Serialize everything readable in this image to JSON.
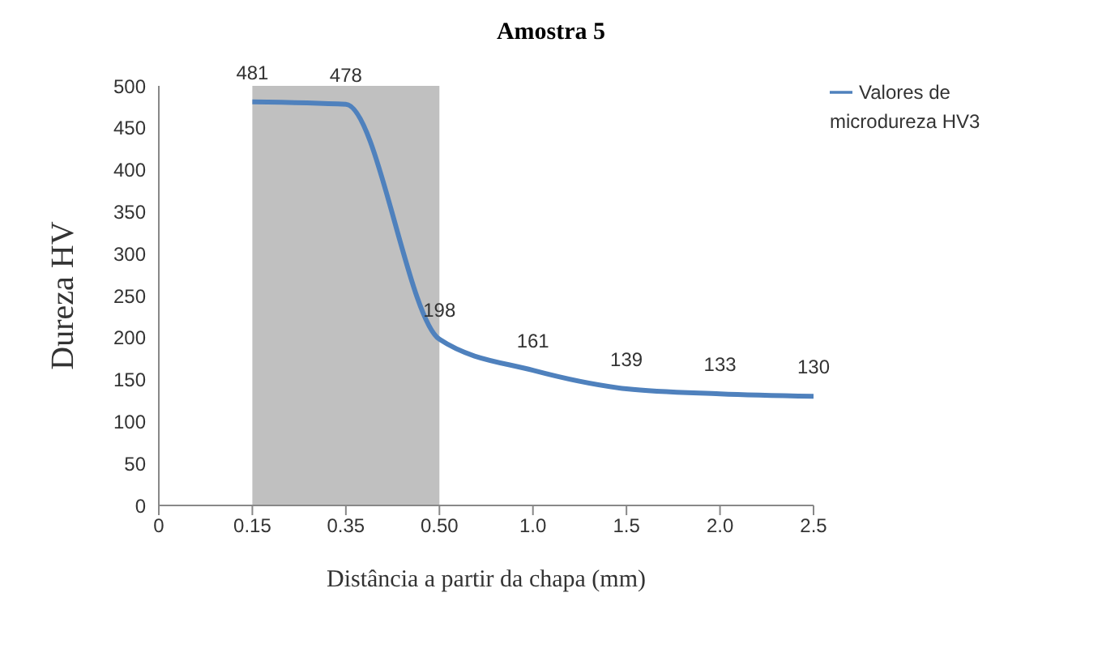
{
  "chart_data": {
    "type": "line",
    "title": "Amostra 5",
    "xlabel": "Distância a partir da chapa (mm)",
    "ylabel": "Dureza HV",
    "categories": [
      "0",
      "0.15",
      "0.35",
      "0.50",
      "1.0",
      "1.5",
      "2.0",
      "2.5"
    ],
    "series": [
      {
        "name": "Valores de microdureza HV3",
        "color": "#4f81bd",
        "values": [
          null,
          481,
          478,
          198,
          161,
          139,
          133,
          130
        ]
      }
    ],
    "ylim": [
      0,
      500
    ],
    "yticks": [
      0,
      50,
      100,
      150,
      200,
      250,
      300,
      350,
      400,
      450,
      500
    ],
    "bands": [
      {
        "axis": "x",
        "from": "0.15",
        "to": "0.50",
        "color": "#c0c0c0"
      }
    ],
    "grid": false,
    "legend": "top right",
    "data_labels": true,
    "marker": "none",
    "line_style": "solid"
  }
}
